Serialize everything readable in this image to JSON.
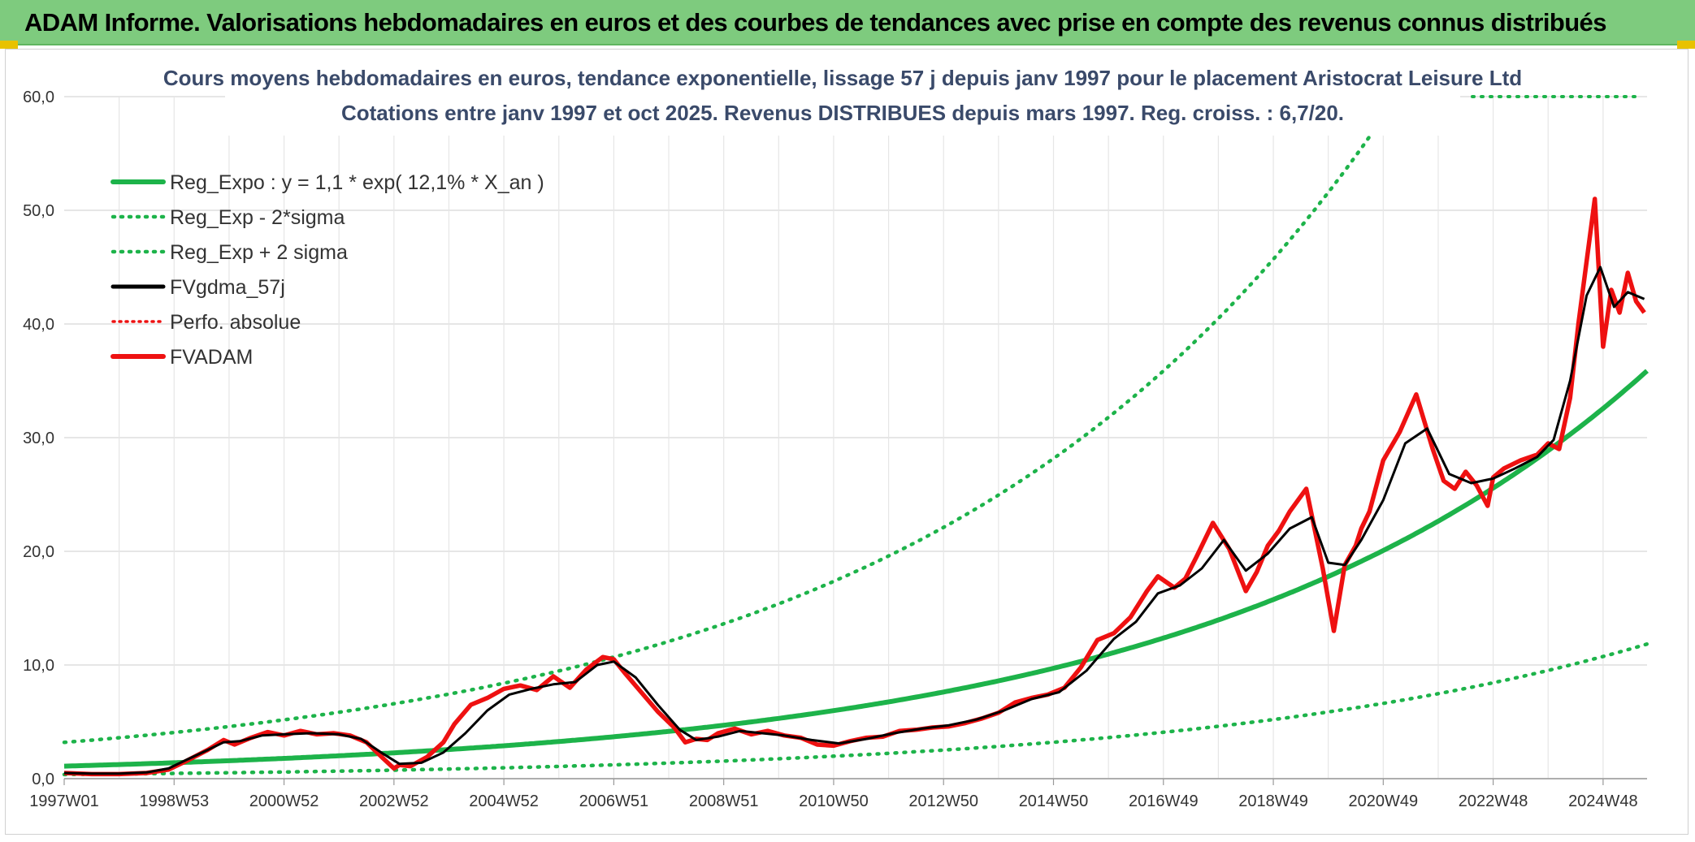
{
  "header": {
    "title": "ADAM Informe. Valorisations hebdomadaires en euros et des courbes de tendances avec prise en compte des revenus connus distribués"
  },
  "colors": {
    "header_bg": "#7ecb7e",
    "reg_expo": "#1db34a",
    "fvgdma": "#000000",
    "fvadam": "#ee1111",
    "perfo": "#ee1111",
    "grid": "#dddddd"
  },
  "chart_data": {
    "type": "line",
    "title_line1": "Cours moyens hebdomadaires en euros, tendance exponentielle, lissage 57 j depuis janv 1997 pour le placement Aristocrat Leisure Ltd",
    "title_line2": "Cotations entre janv 1997 et oct 2025. Revenus DISTRIBUES depuis mars 1997. Reg. croiss. : 6,7/20.",
    "ylim": [
      0,
      60
    ],
    "yticks": [
      "0,0",
      "10,0",
      "20,0",
      "30,0",
      "40,0",
      "50,0",
      "60,0"
    ],
    "xlim": [
      1997.0,
      2025.8
    ],
    "xticks": [
      {
        "label": "1997W01",
        "x": 1997.0
      },
      {
        "label": "1998W53",
        "x": 1999.0
      },
      {
        "label": "2000W52",
        "x": 2001.0
      },
      {
        "label": "2002W52",
        "x": 2003.0
      },
      {
        "label": "2004W52",
        "x": 2005.0
      },
      {
        "label": "2006W51",
        "x": 2007.0
      },
      {
        "label": "2008W51",
        "x": 2009.0
      },
      {
        "label": "2010W50",
        "x": 2011.0
      },
      {
        "label": "2012W50",
        "x": 2013.0
      },
      {
        "label": "2014W50",
        "x": 2015.0
      },
      {
        "label": "2016W49",
        "x": 2017.0
      },
      {
        "label": "2018W49",
        "x": 2019.0
      },
      {
        "label": "2020W49",
        "x": 2021.0
      },
      {
        "label": "2022W48",
        "x": 2023.0
      },
      {
        "label": "2024W48",
        "x": 2025.0
      }
    ],
    "legend": [
      {
        "key": "reg_expo",
        "label": "Reg_Expo : y = 1,1 * exp( 12,1% *  X_an )",
        "style": "solid-green"
      },
      {
        "key": "reg_minus",
        "label": "Reg_Exp - 2*sigma",
        "style": "dotted-green"
      },
      {
        "key": "reg_plus",
        "label": "Reg_Exp + 2 sigma",
        "style": "dotted-green"
      },
      {
        "key": "fvgdma",
        "label": "FVgdma_57j",
        "style": "solid-black"
      },
      {
        "key": "perfo",
        "label": "Perfo. absolue",
        "style": "dotted-red"
      },
      {
        "key": "fvadam",
        "label": "FVADAM",
        "style": "solid-red"
      }
    ],
    "reg_expo": {
      "a": 1.1,
      "rate": 0.121,
      "start": 1997.0
    },
    "reg_minus_factor": 0.33,
    "reg_plus_factor": 2.9,
    "reg_plus_top_label_value": 60.0,
    "series_fvadam": {
      "x": [
        1997.0,
        1997.5,
        1998.0,
        1998.5,
        1998.9,
        1999.2,
        1999.6,
        1999.9,
        2000.1,
        2000.4,
        2000.7,
        2001.0,
        2001.3,
        2001.6,
        2001.9,
        2002.2,
        2002.5,
        2002.8,
        2003.0,
        2003.1,
        2003.3,
        2003.6,
        2003.9,
        2004.1,
        2004.4,
        2004.7,
        2005.0,
        2005.3,
        2005.6,
        2005.9,
        2006.2,
        2006.5,
        2006.8,
        2007.0,
        2007.2,
        2007.5,
        2007.8,
        2008.1,
        2008.3,
        2008.5,
        2008.7,
        2008.9,
        2009.2,
        2009.5,
        2009.8,
        2010.1,
        2010.4,
        2010.7,
        2011.0,
        2011.3,
        2011.6,
        2011.9,
        2012.2,
        2012.5,
        2012.8,
        2013.1,
        2013.4,
        2013.7,
        2014.0,
        2014.3,
        2014.6,
        2014.9,
        2015.2,
        2015.5,
        2015.8,
        2016.1,
        2016.4,
        2016.7,
        2016.9,
        2017.2,
        2017.4,
        2017.6,
        2017.9,
        2018.2,
        2018.5,
        2018.7,
        2018.9,
        2019.1,
        2019.3,
        2019.6,
        2019.9,
        2020.1,
        2020.3,
        2020.5,
        2020.6,
        2020.75,
        2021.0,
        2021.3,
        2021.6,
        2021.9,
        2022.1,
        2022.3,
        2022.5,
        2022.7,
        2022.9,
        2023.0,
        2023.2,
        2023.5,
        2023.8,
        2024.0,
        2024.2,
        2024.4,
        2024.55,
        2024.7,
        2024.85,
        2025.0,
        2025.15,
        2025.3,
        2025.45,
        2025.6,
        2025.75
      ],
      "y": [
        0.5,
        0.4,
        0.4,
        0.5,
        0.8,
        1.5,
        2.5,
        3.4,
        3.0,
        3.6,
        4.1,
        3.8,
        4.2,
        3.9,
        4.0,
        3.8,
        3.2,
        1.8,
        0.9,
        1.2,
        1.1,
        1.9,
        3.2,
        4.8,
        6.5,
        7.1,
        7.9,
        8.2,
        7.8,
        9.0,
        8.0,
        9.6,
        10.7,
        10.5,
        9.3,
        7.6,
        5.9,
        4.5,
        3.2,
        3.5,
        3.4,
        4.0,
        4.4,
        3.9,
        4.2,
        3.8,
        3.6,
        3.0,
        2.9,
        3.3,
        3.6,
        3.7,
        4.2,
        4.3,
        4.5,
        4.6,
        4.9,
        5.3,
        5.8,
        6.7,
        7.1,
        7.4,
        8.0,
        9.8,
        12.2,
        12.8,
        14.2,
        16.5,
        17.8,
        16.8,
        17.6,
        19.5,
        22.5,
        20.2,
        16.5,
        18.2,
        20.5,
        21.8,
        23.5,
        25.5,
        18.5,
        13.0,
        18.8,
        20.5,
        22.0,
        23.5,
        28.0,
        30.5,
        33.8,
        29.0,
        26.2,
        25.5,
        27.0,
        25.8,
        24.0,
        26.5,
        27.3,
        28.0,
        28.5,
        29.5,
        29.0,
        33.5,
        40.0,
        45.5,
        51.0,
        38.0,
        43.0,
        41.0,
        44.5,
        42.0,
        41.0
      ]
    },
    "series_fvgdma": {
      "x": [
        1997.0,
        1997.5,
        1998.0,
        1998.5,
        1998.9,
        1999.2,
        1999.6,
        1999.9,
        2000.2,
        2000.6,
        2001.0,
        2001.5,
        2002.0,
        2002.4,
        2002.8,
        2003.1,
        2003.5,
        2003.9,
        2004.3,
        2004.7,
        2005.1,
        2005.5,
        2005.9,
        2006.3,
        2006.7,
        2007.0,
        2007.4,
        2007.8,
        2008.2,
        2008.5,
        2008.9,
        2009.3,
        2009.7,
        2010.1,
        2010.6,
        2011.1,
        2011.6,
        2012.1,
        2012.6,
        2013.1,
        2013.6,
        2014.1,
        2014.6,
        2015.1,
        2015.6,
        2016.1,
        2016.5,
        2016.9,
        2017.3,
        2017.7,
        2018.1,
        2018.5,
        2018.9,
        2019.3,
        2019.7,
        2020.0,
        2020.3,
        2020.6,
        2021.0,
        2021.4,
        2021.8,
        2022.2,
        2022.6,
        2023.0,
        2023.4,
        2023.8,
        2024.1,
        2024.4,
        2024.7,
        2024.95,
        2025.2,
        2025.45,
        2025.75
      ],
      "y": [
        0.5,
        0.45,
        0.45,
        0.55,
        0.9,
        1.6,
        2.5,
        3.2,
        3.3,
        3.8,
        3.9,
        4.0,
        3.9,
        3.5,
        2.2,
        1.3,
        1.4,
        2.3,
        4.0,
        6.0,
        7.4,
        7.9,
        8.3,
        8.5,
        10.0,
        10.3,
        8.9,
        6.5,
        4.3,
        3.4,
        3.7,
        4.2,
        4.0,
        3.8,
        3.4,
        3.1,
        3.5,
        4.0,
        4.4,
        4.7,
        5.2,
        6.0,
        7.0,
        7.6,
        9.5,
        12.3,
        13.8,
        16.3,
        17.0,
        18.5,
        21.0,
        18.3,
        19.8,
        22.0,
        23.0,
        19.0,
        18.8,
        21.0,
        24.5,
        29.5,
        30.8,
        26.8,
        26.0,
        26.4,
        27.3,
        28.3,
        29.8,
        35.0,
        42.5,
        45.0,
        41.5,
        42.8,
        42.2
      ]
    }
  }
}
